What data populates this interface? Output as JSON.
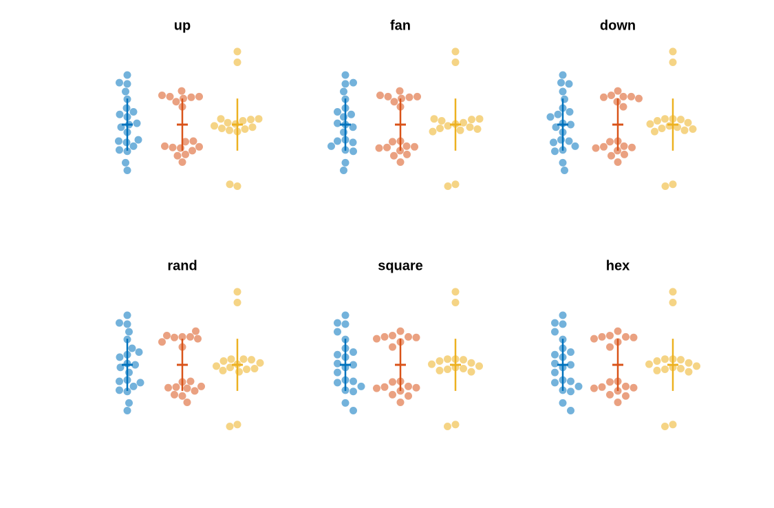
{
  "chart_data": {
    "type": "swarm",
    "panels": [
      "up",
      "fan",
      "down",
      "rand",
      "square",
      "hex"
    ],
    "ylim": [
      -6.5,
      6.5
    ],
    "series": [
      {
        "color": "#0072BD",
        "mean": 0,
        "error": 2.05,
        "values": [
          3.9,
          3.3,
          3.2,
          2.6,
          2.0,
          1.3,
          1.0,
          0.8,
          0.6,
          0.1,
          0.0,
          -0.2,
          -0.6,
          -1.2,
          -1.3,
          -1.4,
          -1.7,
          -2.0,
          -2.1,
          -3.0,
          -3.6
        ]
      },
      {
        "color": "#D95319",
        "mean": 0,
        "error": 2.05,
        "values": [
          2.65,
          2.3,
          2.2,
          2.2,
          2.15,
          2.05,
          1.8,
          1.4,
          -1.3,
          -1.35,
          -1.7,
          -1.75,
          -1.8,
          -1.85,
          -2.05,
          -2.35,
          -2.45,
          -2.95
        ]
      },
      {
        "color": "#EDB120",
        "mean": 0,
        "error": 2.05,
        "values": [
          5.75,
          4.9,
          0.45,
          0.45,
          0.4,
          0.3,
          0.15,
          0.05,
          -0.1,
          -0.2,
          -0.3,
          -0.35,
          -0.45,
          -0.55,
          -4.7,
          -4.85
        ]
      }
    ]
  }
}
